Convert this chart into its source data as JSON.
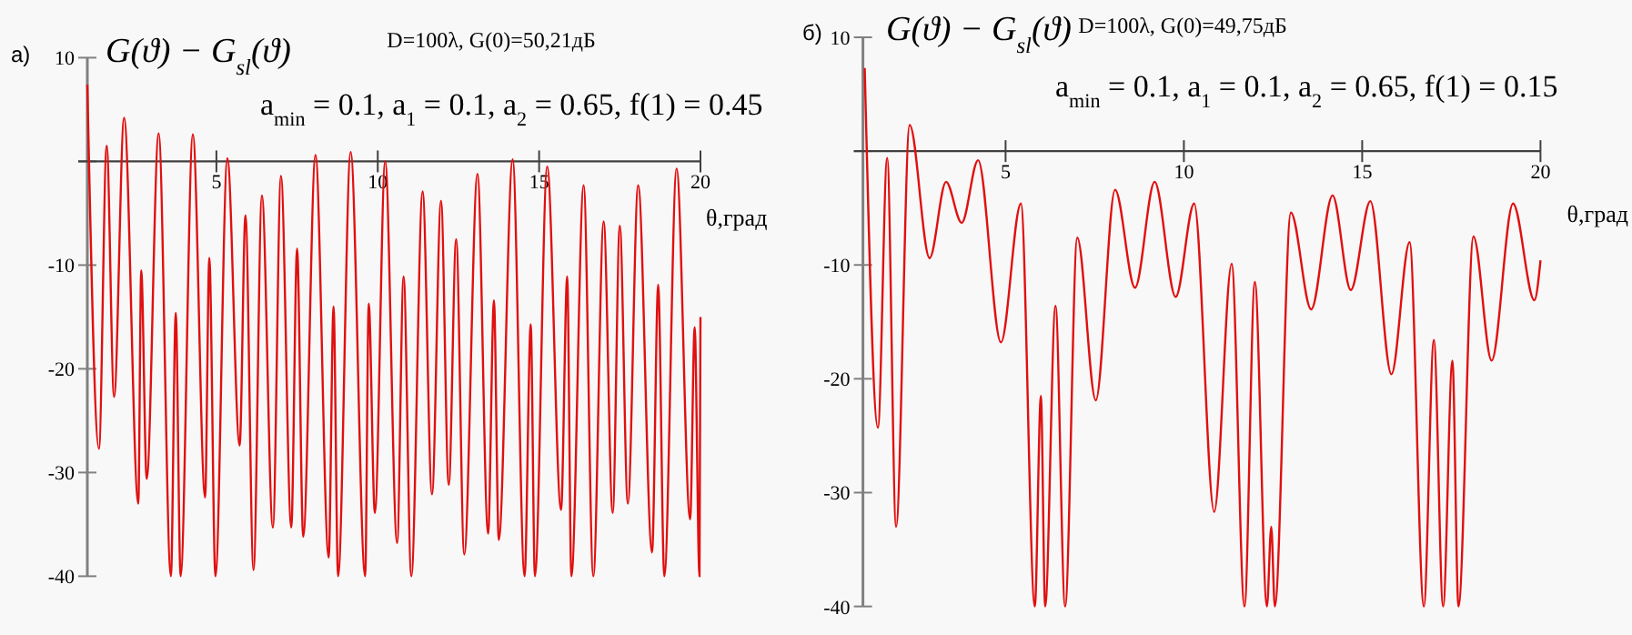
{
  "chart_data": [
    {
      "type": "line",
      "title": "D=100λ, G(0)=50,21дБ",
      "subtitle": "a$_{min}$ = 0.1,   a$_{1}$ = 0.1,   a$_{2}$ = 0.65,   f(1) = 0.45",
      "ylabel": "G(ϑ) − G$_{sl}$(ϑ)",
      "xlabel": "θ,град",
      "annotations": [
        "а)"
      ],
      "x": [
        1.0,
        1.36,
        1.6,
        1.83,
        2.14,
        2.58,
        2.67,
        2.84,
        3.21,
        3.59,
        3.74,
        3.89,
        4.27,
        4.65,
        4.78,
        4.97,
        5.34,
        5.72,
        5.9,
        6.15,
        6.41,
        6.75,
        7.0,
        7.32,
        7.5,
        7.69,
        8.07,
        8.48,
        8.63,
        8.77,
        9.16,
        9.61,
        9.72,
        9.91,
        10.23,
        10.6,
        10.8,
        11.04,
        11.39,
        11.68,
        11.96,
        12.2,
        12.43,
        12.68,
        13.09,
        13.42,
        13.6,
        13.75,
        14.18,
        14.55,
        14.74,
        14.87,
        15.25,
        15.68,
        15.87,
        16.0,
        16.38,
        16.68,
        17.0,
        17.28,
        17.5,
        17.75,
        18.07,
        18.5,
        18.69,
        18.88,
        19.26,
        19.68,
        19.82,
        19.97,
        20
      ],
      "series": [
        {
          "color": "#e01010",
          "values": [
            7.4,
            -27.7,
            1.5,
            -22.7,
            4.2,
            -33,
            -10.5,
            -30.6,
            2.7,
            -40,
            -14.6,
            -40,
            2.6,
            -32.4,
            -9.3,
            -40,
            0.3,
            -27.4,
            -5.2,
            -39.4,
            -3.3,
            -35.3,
            -1.4,
            -35.3,
            -8.4,
            -36.2,
            0.6,
            -38.2,
            -14,
            -40,
            0.9,
            -40,
            -13.7,
            -33.9,
            0,
            -36.8,
            -11.1,
            -40,
            -2.9,
            -32.1,
            -3.8,
            -31.2,
            -7.5,
            -37.9,
            -1.2,
            -35.9,
            -13.4,
            -36.5,
            0.2,
            -40,
            -15.7,
            -40,
            -0.5,
            -33.6,
            -11.1,
            -40,
            -2.3,
            -40,
            -5.8,
            -33.9,
            -6.2,
            -33,
            -2.3,
            -37.7,
            -11.9,
            -40,
            -0.7,
            -34.5,
            -16,
            -40,
            -15
          ]
        }
      ],
      "xlim": [
        1,
        20
      ],
      "ylim": [
        -40,
        10
      ],
      "xticks": [
        5,
        10,
        15,
        20
      ],
      "yticks": [
        -40,
        -30,
        -20,
        -10,
        {
          "value": 0,
          "label": null
        },
        10
      ],
      "grid": false
    },
    {
      "type": "line",
      "title": "D=100λ, G(0)=49,75дБ",
      "subtitle": "a$_{min}$ = 0.1,   a$_{1}$ = 0.1,   a$_{2}$ = 0.65,   f(1) = 0.15",
      "ylabel": "G(ϑ) − G$_{sl}$(ϑ)",
      "xlabel": "θ,град",
      "annotations": [
        "б)"
      ],
      "x": [
        1.05,
        1.42,
        1.68,
        1.93,
        2.31,
        2.87,
        3.33,
        3.77,
        4.23,
        4.87,
        5.43,
        5.82,
        5.99,
        6.11,
        6.4,
        6.67,
        7.01,
        7.53,
        8.07,
        8.63,
        9.18,
        9.77,
        10.29,
        10.85,
        11.34,
        11.7,
        11.99,
        12.33,
        12.45,
        12.55,
        13.0,
        13.57,
        14.17,
        14.68,
        15.23,
        15.82,
        16.33,
        16.73,
        17.01,
        17.27,
        17.53,
        17.7,
        18.12,
        18.63,
        19.23,
        19.83,
        20
      ],
      "series": [
        {
          "color": "#e01010",
          "values": [
            7.3,
            -24.3,
            -0.6,
            -33,
            2.3,
            -9.4,
            -2.7,
            -6.3,
            -0.8,
            -16.8,
            -4.6,
            -40,
            -21.5,
            -40,
            -13.6,
            -40,
            -7.6,
            -21.9,
            -3.4,
            -12,
            -2.7,
            -12.8,
            -4.6,
            -31.7,
            -9.9,
            -40,
            -11.5,
            -40,
            -33,
            -40,
            -5.4,
            -13.9,
            -3.9,
            -12.2,
            -4.4,
            -19.6,
            -8,
            -40,
            -16.6,
            -40,
            -18.4,
            -40,
            -7.5,
            -18.4,
            -4.6,
            -13.1,
            -9.6
          ]
        }
      ],
      "xlim": [
        1,
        20
      ],
      "ylim": [
        -40,
        10
      ],
      "xticks": [
        5,
        10,
        15,
        20
      ],
      "yticks": [
        -40,
        -30,
        -20,
        -10,
        {
          "value": 0,
          "label": null
        },
        10
      ],
      "grid": false
    }
  ]
}
